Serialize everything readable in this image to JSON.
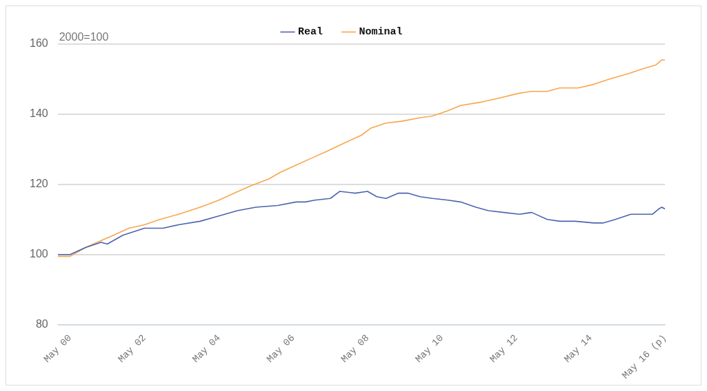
{
  "chart_data": {
    "type": "line",
    "annotations": [
      "2000=100"
    ],
    "xlim": [
      "2000-01",
      "2016-05"
    ],
    "xticks": [
      {
        "value": "2000-05",
        "label": "May 00"
      },
      {
        "value": "2002-05",
        "label": "May 02"
      },
      {
        "value": "2004-05",
        "label": "May 04"
      },
      {
        "value": "2006-05",
        "label": "May 06"
      },
      {
        "value": "2008-05",
        "label": "May 08"
      },
      {
        "value": "2010-05",
        "label": "May 10"
      },
      {
        "value": "2012-05",
        "label": "May 12"
      },
      {
        "value": "2014-05",
        "label": "May 14"
      },
      {
        "value": "2016-05",
        "label": "May 16 (p)"
      }
    ],
    "ylim": [
      80,
      160
    ],
    "yticks": [
      80,
      100,
      120,
      140,
      160
    ],
    "grid": "y",
    "legend": "top",
    "marker": "none",
    "line_style": "solid",
    "series": [
      {
        "name": "Real",
        "color": "#4a63b0",
        "x": [
          "2000-01",
          "2000-05",
          "2000-10",
          "2001-03",
          "2001-05",
          "2001-10",
          "2002-05",
          "2002-11",
          "2003-04",
          "2003-11",
          "2004-05",
          "2004-11",
          "2005-05",
          "2005-12",
          "2006-06",
          "2006-09",
          "2006-12",
          "2007-05",
          "2007-08",
          "2008-01",
          "2008-05",
          "2008-08",
          "2008-11",
          "2009-03",
          "2009-06",
          "2009-10",
          "2010-02",
          "2010-07",
          "2010-11",
          "2011-04",
          "2011-08",
          "2012-01",
          "2012-06",
          "2012-10",
          "2013-03",
          "2013-07",
          "2013-12",
          "2014-06",
          "2014-09",
          "2015-01",
          "2015-06",
          "2016-01",
          "2016-03",
          "2016-04",
          "2016-05"
        ],
        "values": [
          100,
          100,
          102,
          103.5,
          103,
          105.5,
          107.5,
          107.5,
          108.5,
          109.5,
          111,
          112.5,
          113.5,
          114,
          115,
          115,
          115.5,
          116,
          118,
          117.5,
          118,
          116.5,
          116,
          117.5,
          117.5,
          116.5,
          116,
          115.5,
          115,
          113.5,
          112.5,
          112,
          111.5,
          112,
          110,
          109.5,
          109.5,
          109,
          109,
          110,
          111.5,
          111.5,
          113,
          113.5,
          113
        ]
      },
      {
        "name": "Nominal",
        "color": "#f8a54a",
        "x": [
          "2000-01",
          "2000-05",
          "2000-10",
          "2001-03",
          "2001-07",
          "2001-12",
          "2002-05",
          "2002-10",
          "2003-04",
          "2003-11",
          "2004-05",
          "2004-10",
          "2005-03",
          "2005-09",
          "2006-01",
          "2006-06",
          "2006-11",
          "2007-04",
          "2007-10",
          "2008-03",
          "2008-06",
          "2008-11",
          "2009-04",
          "2009-10",
          "2010-02",
          "2010-07",
          "2010-11",
          "2011-06",
          "2011-11",
          "2012-06",
          "2012-10",
          "2013-03",
          "2013-07",
          "2014-01",
          "2014-06",
          "2014-11",
          "2015-05",
          "2015-10",
          "2016-02",
          "2016-04",
          "2016-05"
        ],
        "values": [
          99.5,
          99.5,
          102,
          104,
          105.5,
          107.5,
          108.5,
          110,
          111.5,
          113.5,
          115.5,
          117.5,
          119.5,
          121.5,
          123.5,
          125.5,
          127.5,
          129.5,
          132,
          134,
          136,
          137.5,
          138,
          139,
          139.5,
          141,
          142.5,
          143.5,
          144.5,
          146,
          146.5,
          146.5,
          147.5,
          147.5,
          148.5,
          150,
          151.5,
          153,
          154,
          155.5,
          155.5
        ]
      }
    ]
  }
}
